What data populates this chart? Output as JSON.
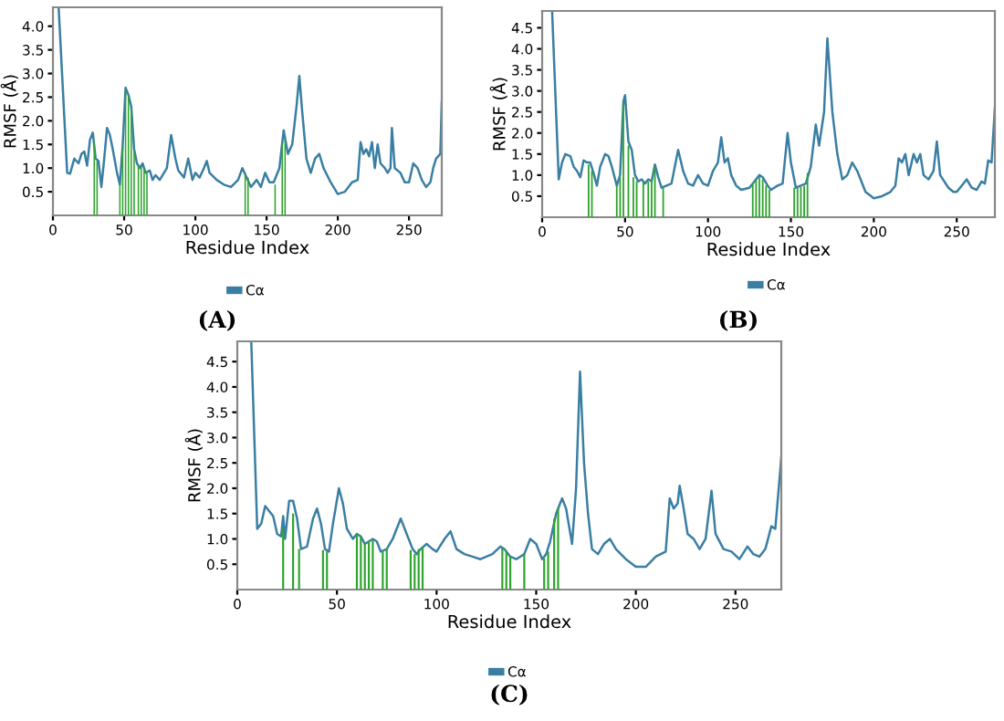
{
  "chart_data": [
    {
      "type": "line",
      "xlabel": "Residue Index",
      "ylabel": "RMSF (Å)",
      "xlim": [
        0,
        273
      ],
      "ylim": [
        0,
        4.4
      ],
      "xticks": [
        0,
        50,
        100,
        150,
        200,
        250
      ],
      "yticks": [
        0.5,
        {
          "value": 1,
          "label": "1.0"
        },
        1.5,
        {
          "value": 2,
          "label": "2.0"
        },
        2.5,
        {
          "value": 3,
          "label": "3.0"
        },
        3.5,
        {
          "value": 4,
          "label": "4.0"
        }
      ],
      "legend": "bottom",
      "annotations": [
        "(A)"
      ],
      "series": [
        {
          "name": "Cα",
          "color": "#3a7fa3",
          "x": [
            4,
            10,
            12,
            15,
            18,
            20,
            22,
            24,
            26,
            28,
            30,
            32,
            34,
            36,
            38,
            40,
            42,
            45,
            47,
            49,
            51,
            53,
            55,
            57,
            59,
            61,
            63,
            65,
            68,
            70,
            72,
            75,
            80,
            83,
            86,
            88,
            92,
            95,
            98,
            100,
            103,
            106,
            108,
            110,
            115,
            120,
            125,
            130,
            133,
            136,
            139,
            143,
            146,
            149,
            152,
            155,
            159,
            162,
            165,
            168,
            171,
            173,
            175,
            178,
            181,
            184,
            187,
            190,
            195,
            200,
            205,
            210,
            214,
            216,
            218,
            220,
            222,
            224,
            226,
            228,
            230,
            233,
            235,
            237,
            238,
            240,
            244,
            247,
            250,
            253,
            256,
            259,
            262,
            265,
            267,
            269,
            272,
            273
          ],
          "values": [
            4.4,
            0.9,
            0.88,
            1.2,
            1.1,
            1.3,
            1.35,
            1.05,
            1.6,
            1.75,
            1.2,
            1.15,
            0.6,
            1.2,
            1.85,
            1.7,
            1.4,
            0.9,
            0.65,
            1.5,
            2.7,
            2.55,
            2.3,
            1.4,
            1.1,
            1.0,
            1.1,
            0.9,
            0.95,
            0.75,
            0.85,
            0.75,
            1.0,
            1.7,
            1.2,
            0.95,
            0.8,
            1.2,
            0.75,
            0.9,
            0.8,
            1.0,
            1.15,
            0.9,
            0.75,
            0.65,
            0.6,
            0.75,
            1.0,
            0.8,
            0.6,
            0.75,
            0.6,
            0.9,
            0.7,
            0.7,
            1.0,
            1.8,
            1.3,
            1.5,
            2.3,
            2.95,
            2.2,
            1.2,
            0.9,
            1.2,
            1.3,
            1.0,
            0.7,
            0.45,
            0.5,
            0.7,
            0.75,
            1.55,
            1.3,
            1.4,
            1.25,
            1.55,
            1.0,
            1.5,
            1.1,
            1.0,
            0.9,
            1.0,
            1.85,
            1.0,
            0.9,
            0.7,
            0.7,
            1.1,
            1.0,
            0.75,
            0.6,
            0.7,
            1.0,
            1.2,
            1.3,
            2.4
          ]
        },
        {
          "type": "bar",
          "color": "#2ea32e",
          "x": [
            29,
            31,
            47,
            49,
            51,
            53,
            55,
            57,
            60,
            62,
            64,
            66,
            135,
            137,
            156,
            161,
            163
          ],
          "values": [
            1.55,
            1.15,
            0.65,
            1.45,
            2.65,
            2.5,
            2.25,
            1.35,
            1.05,
            1.05,
            1.0,
            0.9,
            0.9,
            0.8,
            0.65,
            1.5,
            1.6
          ]
        }
      ]
    },
    {
      "type": "line",
      "xlabel": "Residue Index",
      "ylabel": "RMSF (Å)",
      "xlim": [
        0,
        273
      ],
      "ylim": [
        0,
        4.9
      ],
      "xticks": [
        0,
        50,
        100,
        150,
        200,
        250
      ],
      "yticks": [
        0.5,
        {
          "value": 1,
          "label": "1.0"
        },
        1.5,
        {
          "value": 2,
          "label": "2.0"
        },
        2.5,
        {
          "value": 3,
          "label": "3.0"
        },
        3.5,
        {
          "value": 4,
          "label": "4.0"
        },
        4.5
      ],
      "legend": "bottom",
      "annotations": [
        "(B)"
      ],
      "series": [
        {
          "name": "Cα",
          "color": "#3a7fa3",
          "x": [
            6,
            10,
            12,
            14,
            17,
            19,
            21,
            23,
            25,
            27,
            29,
            31,
            33,
            35,
            38,
            40,
            42,
            45,
            47,
            49,
            50,
            52,
            54,
            56,
            58,
            60,
            62,
            64,
            66,
            68,
            70,
            72,
            75,
            78,
            82,
            85,
            88,
            91,
            94,
            97,
            100,
            103,
            106,
            108,
            110,
            112,
            114,
            117,
            120,
            125,
            128,
            131,
            133,
            136,
            138,
            142,
            145,
            148,
            150,
            153,
            156,
            159,
            162,
            165,
            167,
            170,
            172,
            175,
            178,
            181,
            184,
            187,
            190,
            195,
            200,
            205,
            210,
            213,
            215,
            217,
            219,
            221,
            224,
            226,
            228,
            230,
            233,
            236,
            238,
            240,
            245,
            248,
            250,
            253,
            256,
            259,
            262,
            265,
            267,
            269,
            271,
            273
          ],
          "values": [
            4.9,
            0.9,
            1.3,
            1.5,
            1.45,
            1.2,
            1.1,
            0.95,
            1.35,
            1.3,
            1.3,
            1.05,
            0.75,
            1.2,
            1.5,
            1.45,
            1.2,
            0.75,
            1.0,
            2.75,
            2.9,
            1.8,
            1.6,
            1.0,
            0.85,
            0.9,
            0.8,
            0.9,
            0.85,
            1.25,
            0.95,
            0.7,
            0.75,
            0.8,
            1.6,
            1.1,
            0.8,
            0.75,
            1.0,
            0.8,
            0.75,
            1.1,
            1.3,
            1.9,
            1.3,
            1.4,
            1.0,
            0.75,
            0.65,
            0.7,
            0.85,
            1.0,
            0.95,
            0.75,
            0.65,
            0.75,
            0.8,
            2.0,
            1.3,
            0.7,
            0.75,
            0.8,
            1.2,
            2.2,
            1.7,
            2.5,
            4.25,
            2.5,
            1.5,
            0.9,
            1.0,
            1.3,
            1.1,
            0.6,
            0.45,
            0.5,
            0.6,
            0.75,
            1.4,
            1.3,
            1.5,
            1.0,
            1.5,
            1.3,
            1.5,
            1.0,
            0.9,
            1.1,
            1.8,
            1.0,
            0.7,
            0.6,
            0.6,
            0.75,
            0.9,
            0.7,
            0.65,
            0.85,
            0.8,
            1.35,
            1.3,
            2.6
          ]
        },
        {
          "type": "bar",
          "color": "#2ea32e",
          "x": [
            28,
            30,
            45,
            47,
            49,
            52,
            55,
            57,
            61,
            64,
            66,
            68,
            73,
            127,
            129,
            131,
            133,
            135,
            137,
            152,
            154,
            156,
            158,
            160
          ],
          "values": [
            1.25,
            1.1,
            0.75,
            0.95,
            2.7,
            1.7,
            0.95,
            0.85,
            0.85,
            0.85,
            0.9,
            1.2,
            0.72,
            0.8,
            0.9,
            0.95,
            0.9,
            0.75,
            0.65,
            0.7,
            0.7,
            0.72,
            0.75,
            1.05
          ]
        }
      ]
    },
    {
      "type": "line",
      "xlabel": "Residue Index",
      "ylabel": "RMSF (Å)",
      "xlim": [
        0,
        273
      ],
      "ylim": [
        0,
        4.9
      ],
      "xticks": [
        0,
        50,
        100,
        150,
        200,
        250
      ],
      "yticks": [
        0.5,
        {
          "value": 1,
          "label": "1.0"
        },
        1.5,
        {
          "value": 2,
          "label": "2.0"
        },
        2.5,
        {
          "value": 3,
          "label": "3.0"
        },
        3.5,
        {
          "value": 4,
          "label": "4.0"
        },
        4.5
      ],
      "legend": "bottom",
      "annotations": [
        "(C)"
      ],
      "series": [
        {
          "name": "Cα",
          "color": "#3a7fa3",
          "x": [
            7,
            10,
            12,
            14,
            16,
            18,
            20,
            22,
            23,
            24,
            26,
            28,
            30,
            32,
            35,
            38,
            40,
            42,
            44,
            46,
            48,
            51,
            53,
            55,
            58,
            60,
            62,
            64,
            66,
            68,
            70,
            72,
            75,
            78,
            82,
            85,
            88,
            90,
            92,
            95,
            98,
            100,
            104,
            107,
            110,
            114,
            118,
            122,
            128,
            132,
            134,
            137,
            140,
            144,
            147,
            150,
            153,
            155,
            157,
            160,
            163,
            165,
            168,
            170,
            172,
            174,
            176,
            178,
            181,
            184,
            187,
            190,
            195,
            200,
            205,
            210,
            215,
            217,
            219,
            221,
            222,
            224,
            226,
            229,
            232,
            235,
            238,
            240,
            244,
            248,
            252,
            256,
            259,
            262,
            265,
            268,
            270,
            273
          ],
          "values": [
            4.9,
            1.2,
            1.3,
            1.65,
            1.55,
            1.45,
            1.1,
            1.05,
            1.45,
            1.0,
            1.75,
            1.75,
            1.4,
            0.8,
            0.85,
            1.4,
            1.6,
            1.3,
            0.8,
            0.75,
            1.3,
            2.0,
            1.7,
            1.2,
            1.0,
            1.1,
            1.05,
            0.9,
            0.95,
            1.0,
            0.95,
            0.75,
            0.8,
            1.0,
            1.4,
            1.1,
            0.8,
            0.7,
            0.8,
            0.9,
            0.8,
            0.75,
            1.0,
            1.15,
            0.8,
            0.7,
            0.65,
            0.6,
            0.7,
            0.85,
            0.8,
            0.65,
            0.6,
            0.7,
            1.0,
            0.9,
            0.6,
            0.7,
            0.95,
            1.5,
            1.8,
            1.6,
            0.9,
            2.0,
            4.3,
            2.5,
            1.5,
            0.8,
            0.7,
            0.9,
            1.0,
            0.8,
            0.6,
            0.45,
            0.45,
            0.65,
            0.75,
            1.8,
            1.6,
            1.7,
            2.05,
            1.6,
            1.1,
            1.0,
            0.8,
            1.0,
            1.95,
            1.1,
            0.8,
            0.75,
            0.6,
            0.85,
            0.7,
            0.65,
            0.8,
            1.25,
            1.2,
            2.6
          ]
        },
        {
          "type": "bar",
          "color": "#2ea32e",
          "x": [
            23,
            28,
            31,
            43,
            45,
            60,
            62,
            64,
            66,
            68,
            73,
            75,
            87,
            89,
            91,
            93,
            133,
            135,
            137,
            144,
            154,
            156,
            159,
            161
          ],
          "values": [
            1.2,
            1.5,
            0.8,
            0.78,
            0.75,
            1.1,
            1.05,
            0.9,
            0.95,
            1.0,
            0.75,
            0.8,
            0.78,
            0.7,
            0.8,
            0.85,
            0.82,
            0.75,
            0.65,
            0.7,
            0.62,
            0.75,
            1.4,
            1.6
          ]
        }
      ]
    }
  ]
}
